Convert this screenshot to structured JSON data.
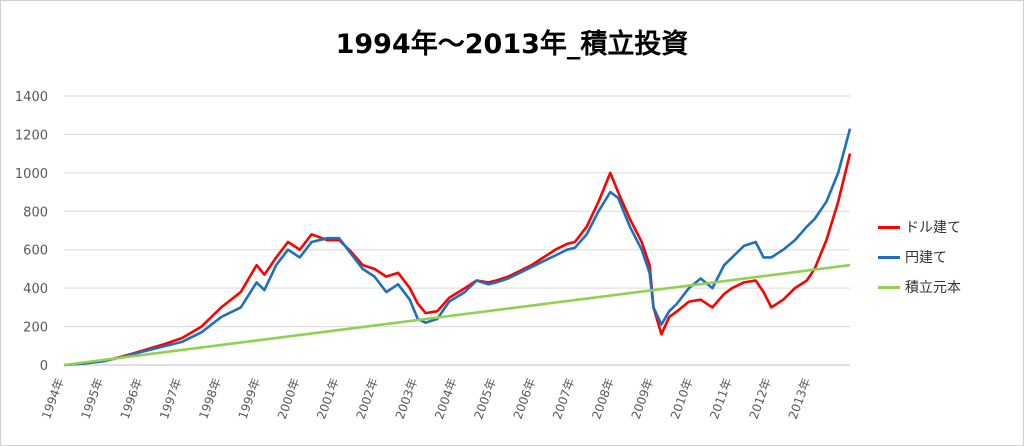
{
  "chart_data": {
    "type": "line",
    "title": "1994年～2013年_積立投資",
    "xlabel": "",
    "ylabel": "",
    "ylim": [
      0,
      1400
    ],
    "yticks": [
      0,
      200,
      400,
      600,
      800,
      1000,
      1200,
      1400
    ],
    "categories": [
      "1994年",
      "1995年",
      "1996年",
      "1997年",
      "1998年",
      "1999年",
      "2000年",
      "2001年",
      "2002年",
      "2003年",
      "2004年",
      "2005年",
      "2006年",
      "2007年",
      "2008年",
      "2009年",
      "2010年",
      "2011年",
      "2012年",
      "2013年"
    ],
    "grid": true,
    "legend_position": "right",
    "series": [
      {
        "name": "ドル建て",
        "color": "#ff0000",
        "points": [
          [
            1994.0,
            0
          ],
          [
            1994.5,
            8
          ],
          [
            1995.0,
            20
          ],
          [
            1995.5,
            45
          ],
          [
            1996.0,
            75
          ],
          [
            1996.5,
            105
          ],
          [
            1997.0,
            140
          ],
          [
            1997.5,
            200
          ],
          [
            1998.0,
            300
          ],
          [
            1998.5,
            380
          ],
          [
            1998.9,
            520
          ],
          [
            1999.1,
            470
          ],
          [
            1999.4,
            560
          ],
          [
            1999.7,
            640
          ],
          [
            2000.0,
            600
          ],
          [
            2000.3,
            680
          ],
          [
            2000.7,
            650
          ],
          [
            2001.0,
            650
          ],
          [
            2001.3,
            590
          ],
          [
            2001.6,
            520
          ],
          [
            2001.9,
            500
          ],
          [
            2002.2,
            460
          ],
          [
            2002.5,
            480
          ],
          [
            2002.8,
            400
          ],
          [
            2003.0,
            320
          ],
          [
            2003.2,
            270
          ],
          [
            2003.5,
            280
          ],
          [
            2003.8,
            350
          ],
          [
            2004.2,
            400
          ],
          [
            2004.5,
            440
          ],
          [
            2004.8,
            430
          ],
          [
            2005.0,
            440
          ],
          [
            2005.3,
            460
          ],
          [
            2005.6,
            490
          ],
          [
            2005.9,
            520
          ],
          [
            2006.2,
            560
          ],
          [
            2006.5,
            600
          ],
          [
            2006.8,
            630
          ],
          [
            2007.0,
            640
          ],
          [
            2007.3,
            720
          ],
          [
            2007.6,
            850
          ],
          [
            2007.9,
            1000
          ],
          [
            2008.1,
            900
          ],
          [
            2008.4,
            760
          ],
          [
            2008.7,
            640
          ],
          [
            2008.9,
            520
          ],
          [
            2009.0,
            300
          ],
          [
            2009.2,
            160
          ],
          [
            2009.4,
            250
          ],
          [
            2009.6,
            280
          ],
          [
            2009.9,
            330
          ],
          [
            2010.2,
            340
          ],
          [
            2010.5,
            300
          ],
          [
            2010.8,
            370
          ],
          [
            2011.0,
            400
          ],
          [
            2011.3,
            430
          ],
          [
            2011.6,
            440
          ],
          [
            2011.8,
            380
          ],
          [
            2012.0,
            300
          ],
          [
            2012.3,
            340
          ],
          [
            2012.6,
            400
          ],
          [
            2012.9,
            440
          ],
          [
            2013.1,
            500
          ],
          [
            2013.4,
            650
          ],
          [
            2013.7,
            850
          ],
          [
            2014.0,
            1100
          ]
        ]
      },
      {
        "name": "円建て",
        "color": "#1f6fbf",
        "points": [
          [
            1994.0,
            0
          ],
          [
            1994.5,
            8
          ],
          [
            1995.0,
            20
          ],
          [
            1995.5,
            42
          ],
          [
            1996.0,
            70
          ],
          [
            1996.5,
            95
          ],
          [
            1997.0,
            120
          ],
          [
            1997.5,
            170
          ],
          [
            1998.0,
            250
          ],
          [
            1998.5,
            300
          ],
          [
            1998.9,
            430
          ],
          [
            1999.1,
            390
          ],
          [
            1999.4,
            520
          ],
          [
            1999.7,
            600
          ],
          [
            2000.0,
            560
          ],
          [
            2000.3,
            640
          ],
          [
            2000.7,
            660
          ],
          [
            2001.0,
            660
          ],
          [
            2001.3,
            580
          ],
          [
            2001.6,
            500
          ],
          [
            2001.9,
            460
          ],
          [
            2002.2,
            380
          ],
          [
            2002.5,
            420
          ],
          [
            2002.8,
            340
          ],
          [
            2003.0,
            240
          ],
          [
            2003.2,
            220
          ],
          [
            2003.5,
            240
          ],
          [
            2003.8,
            330
          ],
          [
            2004.2,
            380
          ],
          [
            2004.5,
            440
          ],
          [
            2004.8,
            420
          ],
          [
            2005.0,
            430
          ],
          [
            2005.3,
            450
          ],
          [
            2005.6,
            480
          ],
          [
            2005.9,
            510
          ],
          [
            2006.2,
            540
          ],
          [
            2006.5,
            570
          ],
          [
            2006.8,
            600
          ],
          [
            2007.0,
            610
          ],
          [
            2007.3,
            680
          ],
          [
            2007.6,
            800
          ],
          [
            2007.9,
            900
          ],
          [
            2008.1,
            870
          ],
          [
            2008.4,
            720
          ],
          [
            2008.7,
            600
          ],
          [
            2008.9,
            480
          ],
          [
            2009.0,
            300
          ],
          [
            2009.2,
            210
          ],
          [
            2009.4,
            280
          ],
          [
            2009.6,
            320
          ],
          [
            2009.9,
            400
          ],
          [
            2010.2,
            450
          ],
          [
            2010.5,
            400
          ],
          [
            2010.8,
            520
          ],
          [
            2011.0,
            560
          ],
          [
            2011.3,
            620
          ],
          [
            2011.6,
            640
          ],
          [
            2011.8,
            560
          ],
          [
            2012.0,
            560
          ],
          [
            2012.3,
            600
          ],
          [
            2012.6,
            650
          ],
          [
            2012.9,
            720
          ],
          [
            2013.1,
            760
          ],
          [
            2013.4,
            850
          ],
          [
            2013.7,
            1000
          ],
          [
            2014.0,
            1230
          ]
        ]
      },
      {
        "name": "積立元本",
        "color": "#92d050",
        "points": [
          [
            1994.0,
            0
          ],
          [
            2014.0,
            520
          ]
        ]
      }
    ]
  }
}
